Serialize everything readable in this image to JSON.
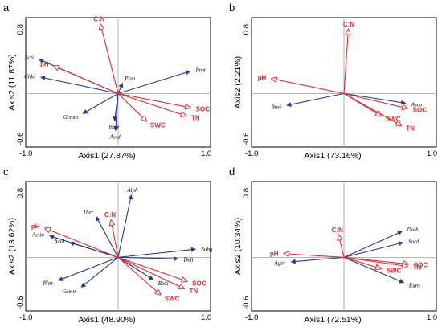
{
  "colors": {
    "env": "#e8262a",
    "taxa": "#283593"
  },
  "chart_data": [
    {
      "type": "scatter",
      "panel": "a",
      "xlabel": "Axis1 (27.87%)",
      "ylabel": "Axis2 (11.87%)",
      "xlim": [
        -1.05,
        1.05
      ],
      "ylim": [
        -0.72,
        1.02
      ],
      "xticks": [
        "-1.0",
        "1.0"
      ],
      "yticks": [
        "0.8",
        "-0.6"
      ],
      "env_vectors": [
        {
          "label": "C:N",
          "x": -0.2,
          "y": 0.93
        },
        {
          "label": "pH",
          "x": -0.73,
          "y": 0.37
        },
        {
          "label": "SOC",
          "x": 0.82,
          "y": -0.19
        },
        {
          "label": "SWC",
          "x": 0.32,
          "y": -0.37
        },
        {
          "label": "TN",
          "x": 0.77,
          "y": -0.3
        }
      ],
      "taxa_vectors": [
        {
          "label": "Acti",
          "x": -0.9,
          "y": 0.46
        },
        {
          "label": "Chlo",
          "x": -0.88,
          "y": 0.22
        },
        {
          "label": "Plan",
          "x": 0.05,
          "y": 0.14
        },
        {
          "label": "Prot",
          "x": 0.82,
          "y": 0.3
        },
        {
          "label": "Gemm",
          "x": -0.4,
          "y": -0.27
        },
        {
          "label": "Bact",
          "x": -0.04,
          "y": -0.37
        },
        {
          "label": "Acid",
          "x": -0.03,
          "y": -0.5
        }
      ]
    },
    {
      "type": "scatter",
      "panel": "b",
      "xlabel": "Axis1 (73.16%)",
      "ylabel": "Axis2 (2.21%)",
      "xlim": [
        -1.05,
        1.05
      ],
      "ylim": [
        -0.72,
        1.02
      ],
      "xticks": [
        "-1.0",
        "1.0"
      ],
      "yticks": [
        "0.8",
        "-0.6"
      ],
      "env_vectors": [
        {
          "label": "C:N",
          "x": 0.05,
          "y": 0.86
        },
        {
          "label": "pH",
          "x": -0.82,
          "y": 0.2
        },
        {
          "label": "SOC",
          "x": 0.72,
          "y": -0.2
        },
        {
          "label": "SWC",
          "x": 0.42,
          "y": -0.3
        },
        {
          "label": "TN",
          "x": 0.65,
          "y": -0.43
        }
      ],
      "taxa_vectors": [
        {
          "label": "Basi",
          "x": -0.65,
          "y": -0.16
        },
        {
          "label": "Asco",
          "x": 0.7,
          "y": -0.13
        }
      ]
    },
    {
      "type": "scatter",
      "panel": "c",
      "xlabel": "Axis1 (48.90%)",
      "ylabel": "Axis2 (13.62%)",
      "xlim": [
        -1.05,
        1.05
      ],
      "ylim": [
        -0.72,
        1.02
      ],
      "xticks": [
        "-1.0",
        "1.0"
      ],
      "yticks": [
        "0.8",
        "-0.6"
      ],
      "env_vectors": [
        {
          "label": "C:N",
          "x": -0.08,
          "y": 0.5
        },
        {
          "label": "pH",
          "x": -0.83,
          "y": 0.39
        },
        {
          "label": "SOC",
          "x": 0.78,
          "y": -0.32
        },
        {
          "label": "SWC",
          "x": 0.48,
          "y": -0.5
        },
        {
          "label": "TN",
          "x": 0.75,
          "y": -0.42
        }
      ],
      "taxa_vectors": [
        {
          "label": "Alph",
          "x": 0.15,
          "y": 0.84
        },
        {
          "label": "Ther",
          "x": -0.25,
          "y": 0.55
        },
        {
          "label": "Actin",
          "x": -0.78,
          "y": 0.29
        },
        {
          "label": "Acid",
          "x": -0.55,
          "y": 0.2
        },
        {
          "label": "Subg",
          "x": 0.88,
          "y": 0.11
        },
        {
          "label": "Delt",
          "x": 0.68,
          "y": -0.02
        },
        {
          "label": "Blas",
          "x": -0.68,
          "y": -0.31
        },
        {
          "label": "Gemm",
          "x": -0.42,
          "y": -0.4
        },
        {
          "label": "Beta",
          "x": 0.4,
          "y": -0.3
        }
      ]
    },
    {
      "type": "scatter",
      "panel": "d",
      "xlabel": "Axis1 (72.51%)",
      "ylabel": "Axis2 (10.34%)",
      "xlim": [
        -1.05,
        1.05
      ],
      "ylim": [
        -0.72,
        1.02
      ],
      "xticks": [
        "-1.0",
        "1.0"
      ],
      "yticks": [
        "0.8",
        "-0.6"
      ],
      "env_vectors": [
        {
          "label": "C:N",
          "x": -0.06,
          "y": 0.3
        },
        {
          "label": "pH",
          "x": -0.68,
          "y": 0.05
        },
        {
          "label": "SOC",
          "x": 0.73,
          "y": -0.09
        },
        {
          "label": "SWC",
          "x": 0.42,
          "y": -0.15
        },
        {
          "label": "TN",
          "x": 0.72,
          "y": -0.12
        }
      ],
      "taxa_vectors": [
        {
          "label": "Doth",
          "x": 0.66,
          "y": 0.35
        },
        {
          "label": "Sord",
          "x": 0.67,
          "y": 0.2
        },
        {
          "label": "Agar",
          "x": -0.6,
          "y": -0.06
        },
        {
          "label": "Euro",
          "x": 0.68,
          "y": -0.34
        }
      ]
    }
  ]
}
